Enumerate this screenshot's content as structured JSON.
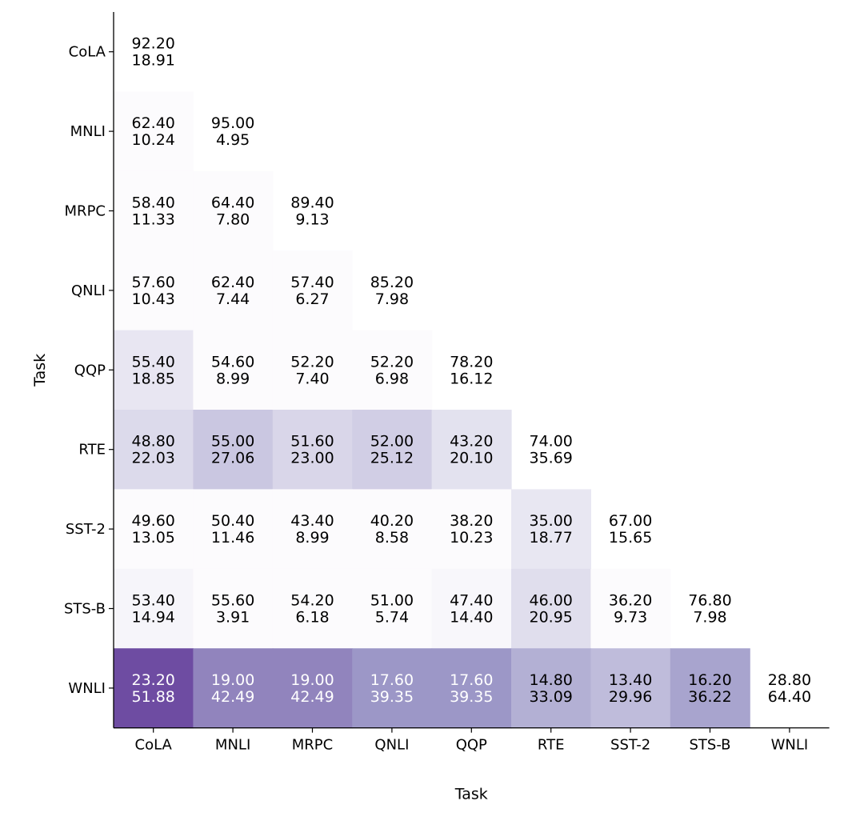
{
  "chart_data": {
    "type": "heatmap",
    "title": "",
    "xlabel": "Task",
    "ylabel": "Task",
    "grid": false,
    "legend": "none",
    "categories": [
      "CoLA",
      "MNLI",
      "MRPC",
      "QNLI",
      "QQP",
      "RTE",
      "SST-2",
      "STS-B",
      "WNLI"
    ],
    "cells": [
      [
        [
          "92.20",
          "18.91"
        ]
      ],
      [
        [
          "62.40",
          "10.24"
        ],
        [
          "95.00",
          "4.95"
        ]
      ],
      [
        [
          "58.40",
          "11.33"
        ],
        [
          "64.40",
          "7.80"
        ],
        [
          "89.40",
          "9.13"
        ]
      ],
      [
        [
          "57.60",
          "10.43"
        ],
        [
          "62.40",
          "7.44"
        ],
        [
          "57.40",
          "6.27"
        ],
        [
          "85.20",
          "7.98"
        ]
      ],
      [
        [
          "55.40",
          "18.85"
        ],
        [
          "54.60",
          "8.99"
        ],
        [
          "52.20",
          "7.40"
        ],
        [
          "52.20",
          "6.98"
        ],
        [
          "78.20",
          "16.12"
        ]
      ],
      [
        [
          "48.80",
          "22.03"
        ],
        [
          "55.00",
          "27.06"
        ],
        [
          "51.60",
          "23.00"
        ],
        [
          "52.00",
          "25.12"
        ],
        [
          "43.20",
          "20.10"
        ],
        [
          "74.00",
          "35.69"
        ]
      ],
      [
        [
          "49.60",
          "13.05"
        ],
        [
          "50.40",
          "11.46"
        ],
        [
          "43.40",
          "8.99"
        ],
        [
          "40.20",
          "8.58"
        ],
        [
          "38.20",
          "10.23"
        ],
        [
          "35.00",
          "18.77"
        ],
        [
          "67.00",
          "15.65"
        ]
      ],
      [
        [
          "53.40",
          "14.94"
        ],
        [
          "55.60",
          "3.91"
        ],
        [
          "54.20",
          "6.18"
        ],
        [
          "51.00",
          "5.74"
        ],
        [
          "47.40",
          "14.40"
        ],
        [
          "46.00",
          "20.95"
        ],
        [
          "36.20",
          "9.73"
        ],
        [
          "76.80",
          "7.98"
        ]
      ],
      [
        [
          "23.20",
          "51.88"
        ],
        [
          "19.00",
          "42.49"
        ],
        [
          "19.00",
          "42.49"
        ],
        [
          "17.60",
          "39.35"
        ],
        [
          "17.60",
          "39.35"
        ],
        [
          "14.80",
          "33.09"
        ],
        [
          "13.40",
          "29.96"
        ],
        [
          "16.20",
          "36.22"
        ],
        [
          "28.80",
          "64.40"
        ]
      ]
    ],
    "colormap": {
      "low": "#fcfbfd",
      "mid": "#9e9ac8",
      "high": "#3f007d",
      "range": [
        13.4,
        64.4
      ],
      "text_dark": "#000000",
      "text_light": "#ffffff"
    }
  }
}
